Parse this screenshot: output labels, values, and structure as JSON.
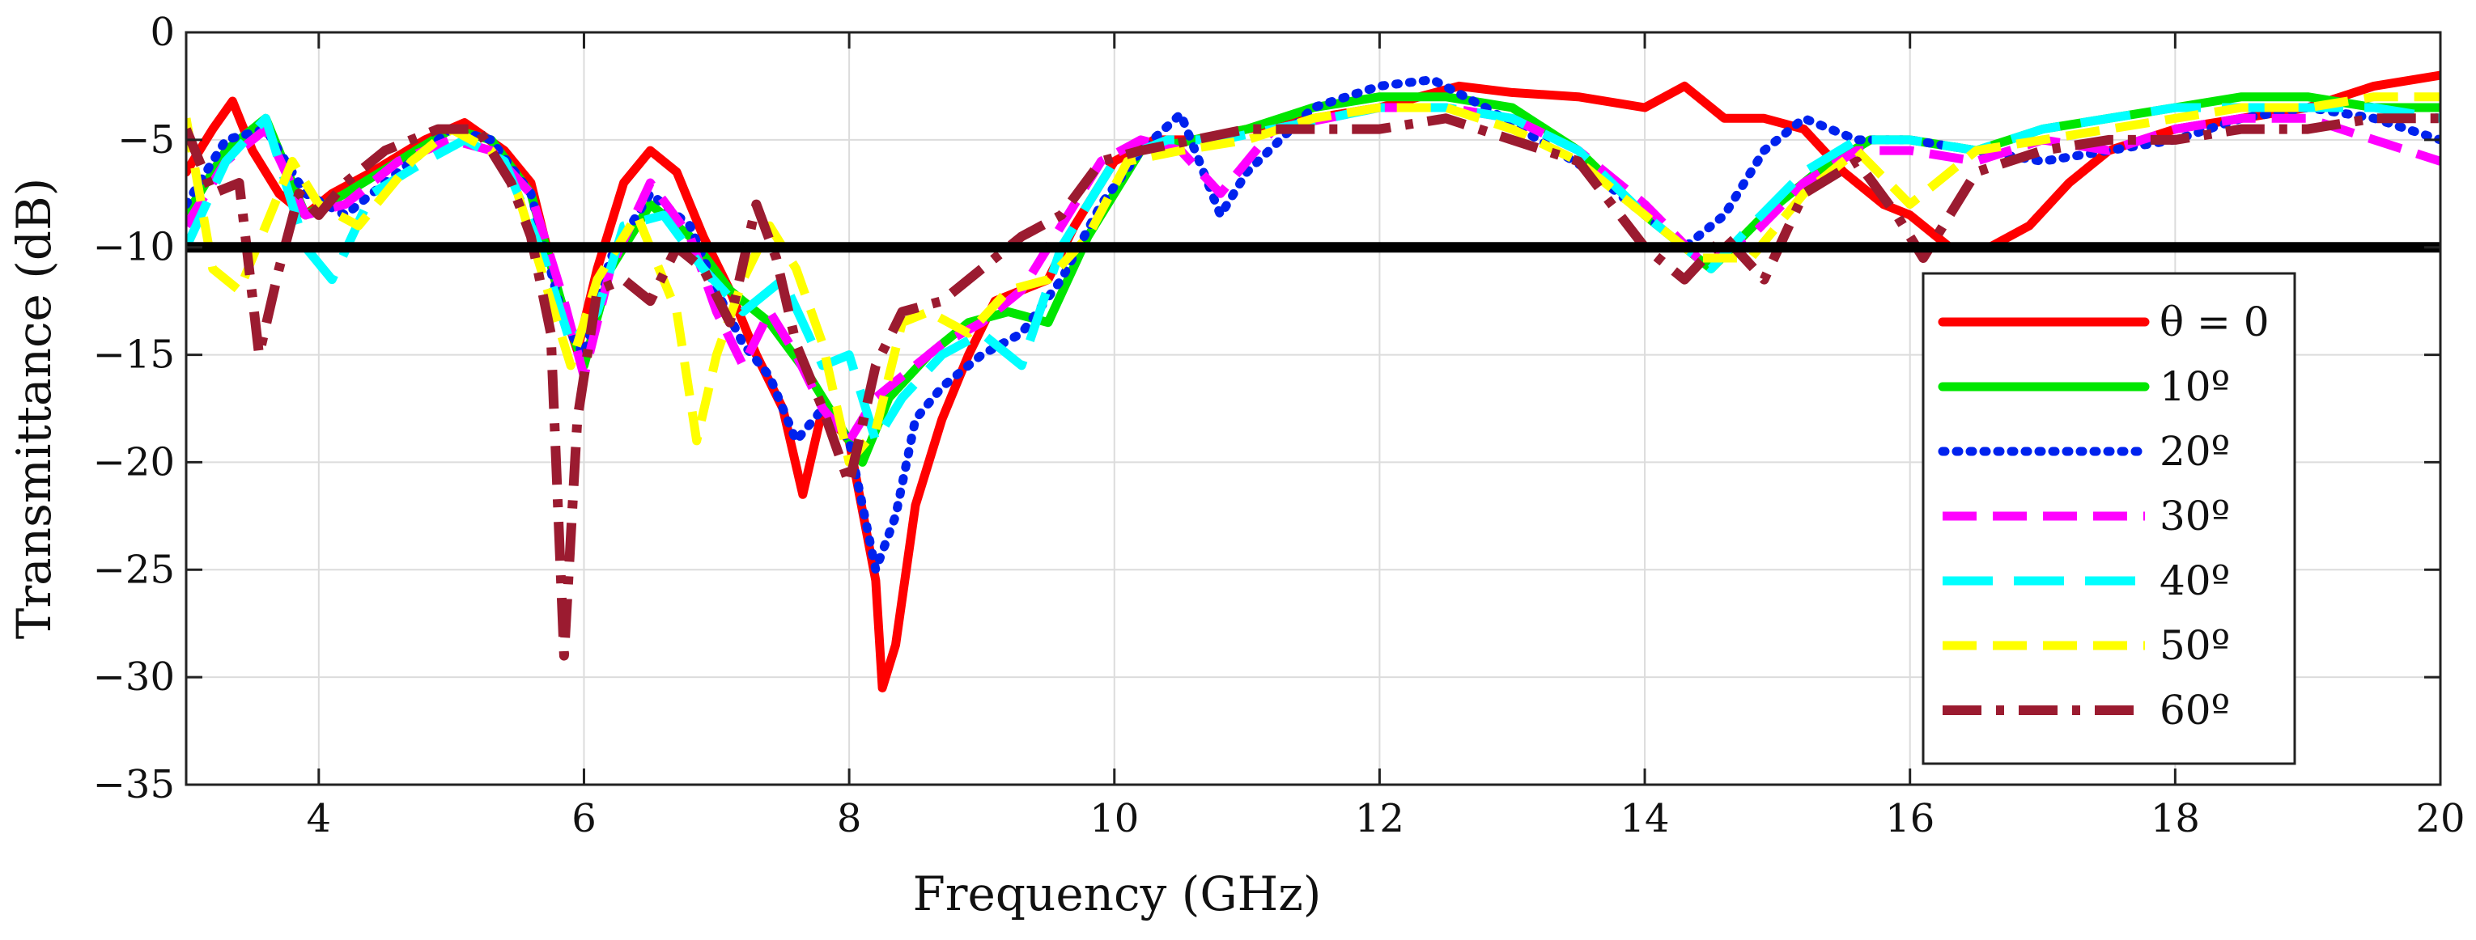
{
  "chart_data": {
    "type": "line",
    "title": "",
    "xlabel": "Frequency (GHz)",
    "ylabel": "Transmittance (dB)",
    "xlim": [
      3,
      20
    ],
    "ylim": [
      -35,
      0
    ],
    "xticks": [
      4,
      6,
      8,
      10,
      12,
      14,
      16,
      18,
      20
    ],
    "yticks": [
      0,
      -5,
      -10,
      -15,
      -20,
      -25,
      -30,
      -35
    ],
    "xtick_labels": [
      "4",
      "6",
      "8",
      "10",
      "12",
      "14",
      "16",
      "18",
      "20"
    ],
    "ytick_labels": [
      "0",
      "−5",
      "−10",
      "−15",
      "−20",
      "−25",
      "−30",
      "−35"
    ],
    "grid": true,
    "legend_position": "bottom-right",
    "reference_line": {
      "y": -10,
      "color": "#000000"
    },
    "series": [
      {
        "name": "θ = 0",
        "color": "#ff0000",
        "dash": "solid",
        "x": [
          3.0,
          3.2,
          3.35,
          3.5,
          3.7,
          3.9,
          4.1,
          4.4,
          4.8,
          5.1,
          5.4,
          5.6,
          5.8,
          5.95,
          6.1,
          6.3,
          6.5,
          6.7,
          6.9,
          7.1,
          7.3,
          7.5,
          7.65,
          7.8,
          8.0,
          8.2,
          8.25,
          8.35,
          8.5,
          8.7,
          8.9,
          9.1,
          9.3,
          9.5,
          9.7,
          10.0,
          10.3,
          10.6,
          11.0,
          11.5,
          12.0,
          12.3,
          12.6,
          13.0,
          13.5,
          14.0,
          14.3,
          14.6,
          14.9,
          15.2,
          15.5,
          15.8,
          16.0,
          16.3,
          16.6,
          16.9,
          17.2,
          17.5,
          18.0,
          18.5,
          19.0,
          19.5,
          20.0
        ],
        "y": [
          -6.5,
          -4.5,
          -3.2,
          -5.5,
          -7.5,
          -8.5,
          -7.5,
          -6.5,
          -5.0,
          -4.2,
          -5.5,
          -7.0,
          -12.0,
          -14.8,
          -11.0,
          -7.0,
          -5.5,
          -6.5,
          -9.5,
          -12.0,
          -15.0,
          -17.5,
          -21.5,
          -17.5,
          -19.0,
          -25.5,
          -30.5,
          -28.5,
          -22.0,
          -18.0,
          -15.0,
          -12.5,
          -12.0,
          -11.5,
          -9.0,
          -6.0,
          -5.0,
          -5.0,
          -4.5,
          -4.0,
          -3.5,
          -3.0,
          -2.5,
          -2.8,
          -3.0,
          -3.5,
          -2.5,
          -4.0,
          -4.0,
          -4.5,
          -6.5,
          -8.0,
          -8.5,
          -10.0,
          -10.0,
          -9.0,
          -7.0,
          -5.5,
          -4.5,
          -4.0,
          -3.5,
          -2.5,
          -2.0
        ]
      },
      {
        "name": "10º",
        "color": "#00e600",
        "dash": "solid",
        "x": [
          3.0,
          3.3,
          3.6,
          3.9,
          4.2,
          4.6,
          5.0,
          5.3,
          5.6,
          5.85,
          6.0,
          6.2,
          6.5,
          6.8,
          7.1,
          7.4,
          7.7,
          7.9,
          8.1,
          8.3,
          8.6,
          8.9,
          9.2,
          9.5,
          9.8,
          10.2,
          10.6,
          11.0,
          11.5,
          12.0,
          12.5,
          13.0,
          13.5,
          14.0,
          14.5,
          14.9,
          15.3,
          15.7,
          16.0,
          16.5,
          17.0,
          17.5,
          18.0,
          18.5,
          19.0,
          19.5,
          20.0
        ],
        "y": [
          -8.5,
          -5.5,
          -4.0,
          -8.5,
          -7.5,
          -6.0,
          -4.5,
          -5.0,
          -7.5,
          -13.0,
          -15.5,
          -11.0,
          -8.0,
          -9.5,
          -12.0,
          -13.5,
          -16.0,
          -18.0,
          -20.0,
          -17.0,
          -15.0,
          -13.5,
          -13.0,
          -13.5,
          -9.5,
          -5.5,
          -5.0,
          -4.5,
          -3.5,
          -3.0,
          -3.0,
          -3.5,
          -5.5,
          -8.5,
          -11.0,
          -8.5,
          -6.5,
          -5.0,
          -5.0,
          -5.5,
          -4.5,
          -4.0,
          -3.5,
          -3.0,
          -3.0,
          -3.5,
          -3.5
        ]
      },
      {
        "name": "20º",
        "color": "#0022ee",
        "dash": "dotted",
        "x": [
          3.0,
          3.3,
          3.6,
          3.9,
          4.2,
          4.6,
          5.0,
          5.3,
          5.6,
          5.85,
          6.0,
          6.2,
          6.5,
          6.8,
          7.0,
          7.2,
          7.4,
          7.6,
          7.8,
          8.0,
          8.2,
          8.35,
          8.5,
          8.7,
          9.0,
          9.3,
          9.6,
          9.9,
          10.2,
          10.5,
          10.8,
          11.0,
          11.5,
          12.0,
          12.4,
          12.8,
          13.2,
          13.6,
          14.0,
          14.3,
          14.6,
          14.9,
          15.2,
          15.6,
          16.0,
          16.5,
          17.0,
          17.5,
          18.0,
          18.5,
          19.0,
          19.5,
          20.0
        ],
        "y": [
          -8.0,
          -5.0,
          -4.5,
          -7.5,
          -8.5,
          -6.5,
          -4.5,
          -5.0,
          -7.5,
          -13.5,
          -15.0,
          -10.5,
          -7.5,
          -9.0,
          -12.0,
          -14.5,
          -16.0,
          -19.0,
          -17.5,
          -19.0,
          -25.0,
          -22.5,
          -18.0,
          -16.5,
          -15.0,
          -14.0,
          -11.5,
          -8.0,
          -5.5,
          -3.8,
          -8.5,
          -6.5,
          -3.5,
          -2.5,
          -2.2,
          -3.5,
          -5.0,
          -6.5,
          -8.5,
          -10.0,
          -8.5,
          -5.5,
          -4.0,
          -5.0,
          -5.0,
          -5.5,
          -6.0,
          -5.5,
          -5.0,
          -4.0,
          -3.5,
          -4.0,
          -5.0
        ]
      },
      {
        "name": "30º",
        "color": "#ff00ff",
        "dash": "dashed",
        "x": [
          3.0,
          3.3,
          3.6,
          3.9,
          4.2,
          4.6,
          5.0,
          5.3,
          5.6,
          5.85,
          6.0,
          6.2,
          6.5,
          6.8,
          7.0,
          7.2,
          7.4,
          7.6,
          7.8,
          8.0,
          8.2,
          8.4,
          8.7,
          9.0,
          9.3,
          9.6,
          9.9,
          10.2,
          10.5,
          10.8,
          11.2,
          11.6,
          12.0,
          12.5,
          13.0,
          13.5,
          14.0,
          14.4,
          14.8,
          15.2,
          15.6,
          16.0,
          16.5,
          17.0,
          17.5,
          18.0,
          18.5,
          19.0,
          19.5,
          20.0
        ],
        "y": [
          -9.0,
          -6.0,
          -4.5,
          -8.5,
          -8.0,
          -6.0,
          -5.0,
          -5.5,
          -7.5,
          -12.5,
          -16.0,
          -11.0,
          -7.0,
          -9.5,
          -13.0,
          -15.5,
          -13.0,
          -15.0,
          -17.5,
          -19.0,
          -17.0,
          -16.0,
          -14.5,
          -13.5,
          -12.0,
          -9.0,
          -6.0,
          -5.0,
          -5.5,
          -7.5,
          -4.5,
          -4.0,
          -3.5,
          -3.5,
          -4.0,
          -5.5,
          -8.0,
          -10.5,
          -9.5,
          -7.0,
          -5.5,
          -5.5,
          -6.0,
          -5.0,
          -5.5,
          -4.5,
          -4.0,
          -4.0,
          -5.0,
          -6.0
        ]
      },
      {
        "name": "40º",
        "color": "#00ffff",
        "dash": "longdash",
        "x": [
          3.0,
          3.3,
          3.6,
          3.9,
          4.1,
          4.4,
          4.8,
          5.1,
          5.4,
          5.7,
          5.9,
          6.1,
          6.3,
          6.6,
          6.9,
          7.2,
          7.5,
          7.8,
          8.0,
          8.2,
          8.4,
          8.7,
          9.0,
          9.3,
          9.6,
          10.0,
          10.4,
          10.8,
          11.2,
          11.6,
          12.0,
          12.5,
          13.0,
          13.5,
          14.0,
          14.5,
          14.8,
          15.2,
          15.6,
          16.0,
          16.5,
          17.0,
          17.5,
          18.0,
          18.5,
          19.0,
          19.5,
          20.0
        ],
        "y": [
          -10.0,
          -6.0,
          -4.0,
          -10.0,
          -11.5,
          -7.5,
          -6.0,
          -5.0,
          -6.0,
          -10.5,
          -14.5,
          -13.0,
          -9.0,
          -8.5,
          -11.0,
          -13.0,
          -11.5,
          -15.5,
          -15.0,
          -19.0,
          -17.0,
          -15.0,
          -14.0,
          -15.5,
          -10.0,
          -6.0,
          -5.0,
          -5.0,
          -4.5,
          -4.0,
          -3.5,
          -3.5,
          -4.0,
          -5.5,
          -8.5,
          -11.0,
          -9.0,
          -6.5,
          -5.0,
          -5.0,
          -5.5,
          -4.5,
          -4.0,
          -3.5,
          -3.5,
          -3.5,
          -3.5,
          -4.0
        ]
      },
      {
        "name": "50º",
        "color": "#ffff00",
        "dash": "dashed",
        "x": [
          3.0,
          3.2,
          3.4,
          3.6,
          3.8,
          4.0,
          4.3,
          4.7,
          5.0,
          5.3,
          5.5,
          5.7,
          5.9,
          6.1,
          6.4,
          6.7,
          6.85,
          7.0,
          7.2,
          7.4,
          7.6,
          7.8,
          8.0,
          8.2,
          8.4,
          8.6,
          8.9,
          9.2,
          9.5,
          9.8,
          10.1,
          10.5,
          11.0,
          11.5,
          12.0,
          12.5,
          13.0,
          13.5,
          14.0,
          14.4,
          14.8,
          15.2,
          15.6,
          16.0,
          16.5,
          17.0,
          17.5,
          18.0,
          18.5,
          19.0,
          19.5,
          20.0
        ],
        "y": [
          -4.0,
          -11.0,
          -12.0,
          -9.0,
          -6.0,
          -8.0,
          -9.0,
          -6.0,
          -4.5,
          -5.5,
          -7.5,
          -11.5,
          -15.5,
          -11.5,
          -8.5,
          -13.0,
          -19.0,
          -15.0,
          -11.5,
          -9.0,
          -11.0,
          -14.5,
          -20.0,
          -18.5,
          -13.5,
          -13.0,
          -14.0,
          -12.0,
          -11.5,
          -9.5,
          -6.0,
          -5.5,
          -5.0,
          -4.0,
          -3.5,
          -3.5,
          -4.5,
          -6.0,
          -8.5,
          -10.5,
          -10.5,
          -7.5,
          -5.5,
          -8.0,
          -5.5,
          -5.0,
          -4.5,
          -4.0,
          -3.5,
          -3.5,
          -3.0,
          -3.0
        ]
      },
      {
        "name": "60º",
        "color": "#9b1b30",
        "dash": "dashdot",
        "x": [
          3.0,
          3.2,
          3.4,
          3.55,
          3.7,
          3.85,
          4.0,
          4.2,
          4.5,
          4.9,
          5.2,
          5.45,
          5.6,
          5.75,
          5.85,
          5.95,
          6.1,
          6.3,
          6.5,
          6.7,
          6.9,
          7.1,
          7.3,
          7.45,
          7.6,
          7.8,
          8.0,
          8.2,
          8.4,
          8.7,
          9.0,
          9.3,
          9.6,
          9.9,
          10.2,
          10.6,
          11.0,
          11.5,
          12.0,
          12.5,
          13.0,
          13.5,
          14.0,
          14.3,
          14.6,
          14.9,
          15.2,
          15.6,
          15.9,
          16.1,
          16.5,
          17.0,
          17.5,
          18.0,
          18.5,
          19.0,
          19.5,
          20.0
        ],
        "y": [
          -4.5,
          -7.5,
          -7.0,
          -15.0,
          -11.0,
          -7.5,
          -8.5,
          -7.0,
          -5.5,
          -4.5,
          -4.5,
          -7.0,
          -9.5,
          -14.0,
          -29.0,
          -18.0,
          -12.0,
          -11.5,
          -12.5,
          -10.0,
          -11.0,
          -13.5,
          -8.0,
          -10.5,
          -14.5,
          -17.5,
          -21.0,
          -15.5,
          -13.0,
          -12.5,
          -11.0,
          -9.5,
          -8.5,
          -6.0,
          -5.5,
          -5.0,
          -4.5,
          -4.5,
          -4.5,
          -4.0,
          -5.0,
          -6.0,
          -10.0,
          -11.5,
          -9.5,
          -11.5,
          -7.5,
          -6.0,
          -8.5,
          -10.5,
          -6.5,
          -5.5,
          -5.0,
          -5.0,
          -4.5,
          -4.5,
          -4.0,
          -4.0
        ]
      }
    ]
  }
}
